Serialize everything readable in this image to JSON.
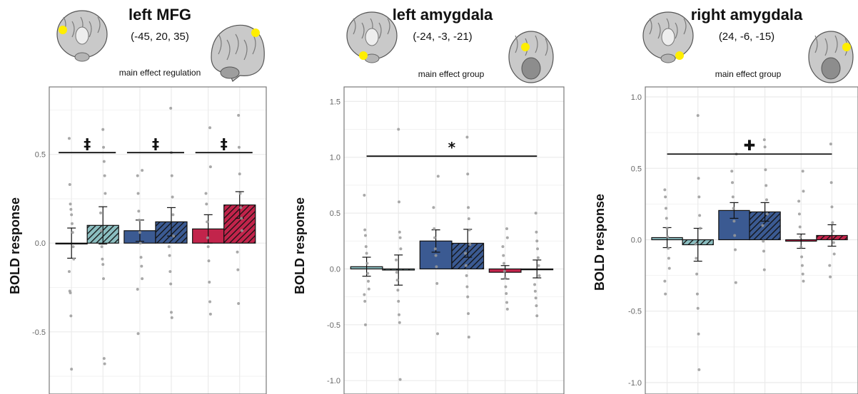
{
  "colors": {
    "group1": "#8bbec0",
    "group2": "#3b5a92",
    "group3": "#c2244b",
    "stroke": "#111111",
    "dots": "#9a9a9a",
    "grid": "#ebebeb",
    "marker": "#ffee00"
  },
  "chart_data": [
    {
      "type": "bar",
      "title": "left MFG",
      "coordinates": "(-45, 20, 35)",
      "effect_label": "main effect regulation",
      "ylabel": "BOLD response",
      "ylim": [
        -0.85,
        0.88
      ],
      "yticks": [
        -0.5,
        0.0,
        0.5
      ],
      "ytick_labels": [
        "-0.5",
        "0.0",
        "0.5"
      ],
      "grid": true,
      "brain_views": [
        "coronal",
        "sagittal"
      ],
      "groups": [
        {
          "color_key": "group1",
          "bars": [
            {
              "hatched": false,
              "value": 0.0,
              "err": 0.085
            },
            {
              "hatched": true,
              "value": 0.1,
              "err": 0.105
            }
          ]
        },
        {
          "color_key": "group2",
          "bars": [
            {
              "hatched": false,
              "value": 0.07,
              "err": 0.06
            },
            {
              "hatched": true,
              "value": 0.12,
              "err": 0.08
            }
          ]
        },
        {
          "color_key": "group3",
          "bars": [
            {
              "hatched": false,
              "value": 0.08,
              "err": 0.08
            },
            {
              "hatched": true,
              "value": 0.215,
              "err": 0.075
            }
          ]
        }
      ],
      "dots": [
        [
          0.59,
          0.33,
          0.22,
          0.19,
          0.16,
          0.11,
          0.06,
          -0.02,
          -0.09,
          -0.16,
          -0.27,
          -0.28,
          -0.41,
          -0.71
        ],
        [
          0.64,
          0.54,
          0.46,
          0.38,
          0.28,
          0.17,
          0.07,
          -0.02,
          -0.09,
          -0.12,
          -0.2,
          -0.65,
          -0.68
        ],
        [
          0.41,
          0.38,
          0.28,
          0.18,
          0.13,
          0.06,
          0.0,
          -0.08,
          -0.13,
          -0.2,
          -0.26,
          -0.51
        ],
        [
          0.76,
          0.51,
          0.38,
          0.26,
          0.16,
          0.04,
          -0.02,
          -0.07,
          -0.16,
          -0.23,
          -0.39,
          -0.42
        ],
        [
          0.65,
          0.43,
          0.28,
          0.22,
          0.12,
          0.03,
          -0.02,
          -0.1,
          -0.22,
          -0.33,
          -0.4
        ],
        [
          0.72,
          0.54,
          0.39,
          0.28,
          0.2,
          0.14,
          0.07,
          -0.05,
          -0.15,
          -0.34
        ]
      ],
      "brackets": [
        {
          "from": 0,
          "to": 1,
          "value": 0.51,
          "symbol": "‡"
        },
        {
          "from": 2,
          "to": 3,
          "value": 0.51,
          "symbol": "‡"
        },
        {
          "from": 4,
          "to": 5,
          "value": 0.51,
          "symbol": "‡"
        }
      ]
    },
    {
      "type": "bar",
      "title": "left amygdala",
      "coordinates": "(-24, -3, -21)",
      "effect_label": "main effect group",
      "ylabel": "BOLD response",
      "ylim": [
        -1.12,
        1.63
      ],
      "yticks": [
        -1.0,
        -0.5,
        0.0,
        0.5,
        1.0,
        1.5
      ],
      "ytick_labels": [
        "-1.0",
        "-0.5",
        "0.0",
        "0.5",
        "1.0",
        "1.5"
      ],
      "grid": true,
      "brain_views": [
        "coronal",
        "axial"
      ],
      "groups": [
        {
          "color_key": "group1",
          "bars": [
            {
              "hatched": false,
              "value": 0.02,
              "err": 0.085
            },
            {
              "hatched": true,
              "value": -0.01,
              "err": 0.135
            }
          ]
        },
        {
          "color_key": "group2",
          "bars": [
            {
              "hatched": false,
              "value": 0.25,
              "err": 0.1
            },
            {
              "hatched": true,
              "value": 0.23,
              "err": 0.125
            }
          ]
        },
        {
          "color_key": "group3",
          "bars": [
            {
              "hatched": false,
              "value": -0.03,
              "err": 0.06
            },
            {
              "hatched": true,
              "value": 0.0,
              "err": 0.08
            }
          ]
        }
      ],
      "dots": [
        [
          0.66,
          0.35,
          0.3,
          0.2,
          0.14,
          0.05,
          -0.04,
          -0.11,
          -0.18,
          -0.23,
          -0.29,
          -0.5
        ],
        [
          1.25,
          0.6,
          0.33,
          0.28,
          0.18,
          0.08,
          -0.03,
          -0.1,
          -0.19,
          -0.29,
          -0.41,
          -0.48,
          -0.99
        ],
        [
          0.83,
          0.55,
          0.36,
          0.28,
          0.18,
          0.12,
          0.02,
          -0.13,
          -0.58
        ],
        [
          1.18,
          0.85,
          0.55,
          0.45,
          0.35,
          0.22,
          0.14,
          0.03,
          -0.06,
          -0.16,
          -0.25,
          -0.4,
          -0.61
        ],
        [
          0.36,
          0.28,
          0.2,
          0.12,
          0.05,
          -0.02,
          -0.08,
          -0.16,
          -0.22,
          -0.3,
          -0.36
        ],
        [
          0.5,
          0.33,
          0.25,
          0.18,
          0.1,
          0.03,
          -0.06,
          -0.14,
          -0.2,
          -0.26,
          -0.33,
          -0.42
        ]
      ],
      "brackets": [
        {
          "from": 0,
          "to": 5,
          "value": 1.01,
          "symbol": "*"
        }
      ]
    },
    {
      "type": "bar",
      "title": "right amygdala",
      "coordinates": "(24, -6, -15)",
      "effect_label": "main effect group",
      "ylabel": "BOLD response",
      "ylim": [
        -1.08,
        1.07
      ],
      "yticks": [
        -1.0,
        -0.5,
        0.0,
        0.5,
        1.0
      ],
      "ytick_labels": [
        "-1.0",
        "-0.5",
        "0.0",
        "0.5",
        "1.0"
      ],
      "grid": true,
      "brain_views": [
        "coronal",
        "axial"
      ],
      "groups": [
        {
          "color_key": "group1",
          "bars": [
            {
              "hatched": false,
              "value": 0.015,
              "err": 0.07
            },
            {
              "hatched": true,
              "value": -0.035,
              "err": 0.115
            }
          ]
        },
        {
          "color_key": "group2",
          "bars": [
            {
              "hatched": false,
              "value": 0.205,
              "err": 0.055
            },
            {
              "hatched": true,
              "value": 0.195,
              "err": 0.065
            }
          ]
        },
        {
          "color_key": "group3",
          "bars": [
            {
              "hatched": false,
              "value": -0.01,
              "err": 0.05
            },
            {
              "hatched": true,
              "value": 0.03,
              "err": 0.075
            }
          ]
        }
      ],
      "dots": [
        [
          0.35,
          0.3,
          0.22,
          0.15,
          0.08,
          0.02,
          -0.06,
          -0.13,
          -0.2,
          -0.29,
          -0.38
        ],
        [
          0.87,
          0.43,
          0.3,
          0.17,
          0.08,
          -0.03,
          -0.13,
          -0.24,
          -0.38,
          -0.48,
          -0.66,
          -0.91
        ],
        [
          0.6,
          0.48,
          0.4,
          0.3,
          0.22,
          0.13,
          0.03,
          -0.07,
          -0.3
        ],
        [
          0.7,
          0.65,
          0.49,
          0.38,
          0.28,
          0.18,
          0.1,
          -0.01,
          -0.08,
          -0.21
        ],
        [
          0.48,
          0.34,
          0.27,
          0.18,
          0.09,
          0.02,
          -0.05,
          -0.12,
          -0.18,
          -0.24,
          -0.29
        ],
        [
          0.67,
          0.4,
          0.23,
          0.12,
          0.06,
          -0.02,
          -0.1,
          -0.18,
          -0.26
        ]
      ],
      "brackets": [
        {
          "from": 0,
          "to": 5,
          "value": 0.6,
          "symbol": "✚"
        }
      ]
    }
  ]
}
